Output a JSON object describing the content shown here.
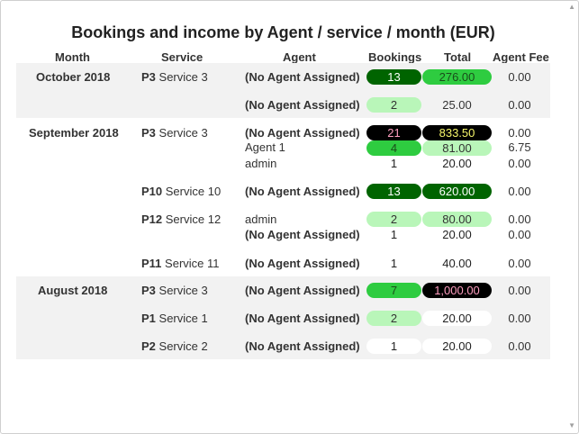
{
  "title": "Bookings and income by Agent / service / month (EUR)",
  "headers": {
    "month": "Month",
    "service": "Service",
    "agent": "Agent",
    "bookings": "Bookings",
    "total": "Total",
    "agent_fee": "Agent Fee"
  },
  "colors": {
    "dark_green": "#006400",
    "bright_green": "#2ecc40",
    "light_green": "#b9f6b9",
    "black": "#000000",
    "band": "#f2f2f2"
  },
  "rows": [
    {
      "month": "October 2018",
      "code": "P3",
      "service": "Service 3",
      "agent": "(No Agent Assigned)",
      "bookings": "13",
      "total": "276.00",
      "fee": "0.00"
    },
    {
      "agent": "(No Agent Assigned)",
      "bookings": "2",
      "total": "25.00",
      "fee": "0.00"
    },
    {
      "month": "September 2018",
      "code": "P3",
      "service": "Service 3",
      "agent": "(No Agent Assigned)",
      "bookings": "21",
      "total": "833.50",
      "fee": "0.00"
    },
    {
      "agent": "Agent 1",
      "bookings": "4",
      "total": "81.00",
      "fee": "6.75"
    },
    {
      "agent": "admin",
      "bookings": "1",
      "total": "20.00",
      "fee": "0.00"
    },
    {
      "code": "P10",
      "service": "Service 10",
      "agent": "(No Agent Assigned)",
      "bookings": "13",
      "total": "620.00",
      "fee": "0.00"
    },
    {
      "code": "P12",
      "service": "Service 12",
      "agent": "admin",
      "bookings": "2",
      "total": "80.00",
      "fee": "0.00"
    },
    {
      "agent": "(No Agent Assigned)",
      "bookings": "1",
      "total": "20.00",
      "fee": "0.00"
    },
    {
      "code": "P11",
      "service": "Service 11",
      "agent": "(No Agent Assigned)",
      "bookings": "1",
      "total": "40.00",
      "fee": "0.00"
    },
    {
      "month": "August 2018",
      "code": "P3",
      "service": "Service 3",
      "agent": "(No Agent Assigned)",
      "bookings": "7",
      "total": "1,000.00",
      "fee": "0.00"
    },
    {
      "code": "P1",
      "service": "Service 1",
      "agent": "(No Agent Assigned)",
      "bookings": "2",
      "total": "20.00",
      "fee": "0.00"
    },
    {
      "code": "P2",
      "service": "Service 2",
      "agent": "(No Agent Assigned)",
      "bookings": "1",
      "total": "20.00",
      "fee": "0.00"
    }
  ]
}
